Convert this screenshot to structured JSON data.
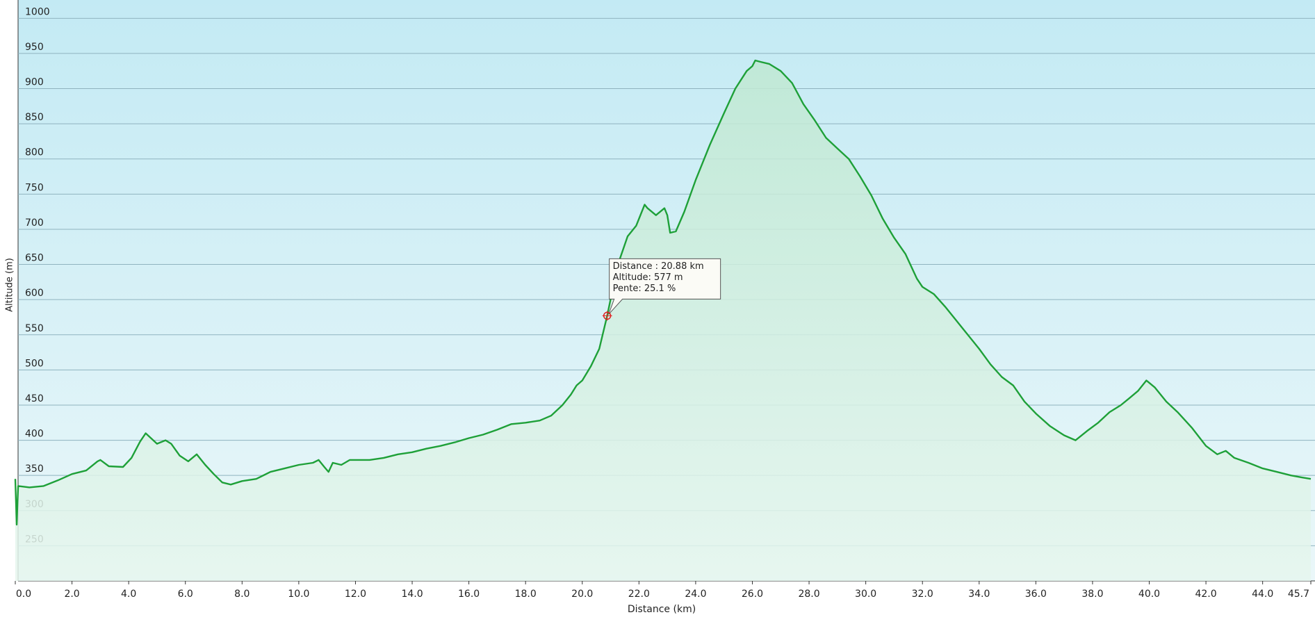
{
  "chart_data": {
    "type": "area",
    "xlabel": "Distance  (km)",
    "ylabel": "Altitude (m)",
    "color": "#1ea038",
    "x": [
      0.0,
      0.05,
      0.1,
      0.5,
      1.0,
      1.5,
      2.0,
      2.5,
      2.9,
      3.0,
      3.3,
      3.8,
      4.1,
      4.4,
      4.6,
      5.0,
      5.3,
      5.5,
      5.8,
      6.1,
      6.4,
      6.7,
      7.0,
      7.3,
      7.6,
      8.0,
      8.5,
      9.0,
      9.5,
      10.0,
      10.5,
      10.7,
      10.9,
      11.05,
      11.2,
      11.5,
      11.8,
      12.5,
      13.0,
      13.5,
      14.0,
      14.5,
      15.0,
      15.5,
      16.0,
      16.5,
      17.0,
      17.5,
      18.0,
      18.5,
      18.9,
      19.3,
      19.6,
      19.8,
      20.0,
      20.3,
      20.6,
      20.88,
      21.1,
      21.3,
      21.6,
      21.9,
      22.2,
      22.3,
      22.6,
      22.9,
      23.0,
      23.1,
      23.3,
      23.6,
      24.0,
      24.5,
      25.0,
      25.4,
      25.8,
      26.0,
      26.1,
      26.3,
      26.6,
      27.0,
      27.4,
      27.8,
      28.2,
      28.6,
      29.0,
      29.4,
      29.8,
      30.2,
      30.6,
      31.0,
      31.4,
      31.8,
      32.0,
      32.4,
      32.8,
      33.1,
      33.5,
      34.0,
      34.4,
      34.8,
      35.2,
      35.6,
      36.0,
      36.5,
      37.0,
      37.4,
      37.8,
      38.2,
      38.6,
      39.0,
      39.3,
      39.6,
      39.9,
      40.2,
      40.6,
      41.0,
      41.5,
      42.0,
      42.4,
      42.7,
      43.0,
      43.5,
      44.0,
      44.5,
      45.0,
      45.4,
      45.7
    ],
    "values": [
      345,
      280,
      335,
      333,
      335,
      343,
      352,
      357,
      370,
      372,
      363,
      362,
      375,
      398,
      410,
      395,
      400,
      395,
      378,
      370,
      380,
      365,
      352,
      340,
      337,
      342,
      345,
      355,
      360,
      365,
      368,
      372,
      362,
      355,
      368,
      365,
      372,
      372,
      375,
      380,
      383,
      388,
      392,
      397,
      403,
      408,
      415,
      423,
      425,
      428,
      435,
      450,
      465,
      478,
      485,
      505,
      530,
      577,
      620,
      655,
      690,
      705,
      735,
      730,
      720,
      730,
      720,
      695,
      697,
      725,
      770,
      820,
      865,
      900,
      925,
      932,
      940,
      938,
      935,
      925,
      908,
      878,
      855,
      830,
      815,
      800,
      775,
      748,
      715,
      688,
      665,
      630,
      618,
      608,
      590,
      575,
      555,
      530,
      508,
      490,
      478,
      455,
      438,
      420,
      407,
      400,
      413,
      425,
      440,
      450,
      460,
      470,
      485,
      475,
      455,
      440,
      418,
      392,
      380,
      385,
      375,
      368,
      360,
      355,
      350,
      347,
      345
    ],
    "xlim": [
      0,
      45.7
    ],
    "ylim": [
      200,
      1026
    ],
    "xticks": [
      {
        "value": 0,
        "label": "0.0"
      },
      {
        "value": 2,
        "label": "2.0"
      },
      {
        "value": 4,
        "label": "4.0"
      },
      {
        "value": 6,
        "label": "6.0"
      },
      {
        "value": 8,
        "label": "8.0"
      },
      {
        "value": 10,
        "label": "10.0"
      },
      {
        "value": 12,
        "label": "12.0"
      },
      {
        "value": 14,
        "label": "14.0"
      },
      {
        "value": 16,
        "label": "16.0"
      },
      {
        "value": 18,
        "label": "18.0"
      },
      {
        "value": 20,
        "label": "20.0"
      },
      {
        "value": 22,
        "label": "22.0"
      },
      {
        "value": 24,
        "label": "24.0"
      },
      {
        "value": 26,
        "label": "26.0"
      },
      {
        "value": 28,
        "label": "28.0"
      },
      {
        "value": 30,
        "label": "30.0"
      },
      {
        "value": 32,
        "label": "32.0"
      },
      {
        "value": 34,
        "label": "34.0"
      },
      {
        "value": 36,
        "label": "36.0"
      },
      {
        "value": 38,
        "label": "38.0"
      },
      {
        "value": 40,
        "label": "40.0"
      },
      {
        "value": 42,
        "label": "42.0"
      },
      {
        "value": 44,
        "label": "44.0"
      },
      45.7
    ],
    "yticks": [
      250,
      300,
      350,
      400,
      450,
      500,
      550,
      600,
      650,
      700,
      750,
      800,
      850,
      900,
      950,
      1000
    ],
    "grid": true,
    "tooltip": {
      "x": 20.88,
      "y": 577,
      "lines": [
        "Distance : 20.88 km",
        "Altitude: 577 m",
        "Pente: 25.1 %"
      ]
    }
  }
}
